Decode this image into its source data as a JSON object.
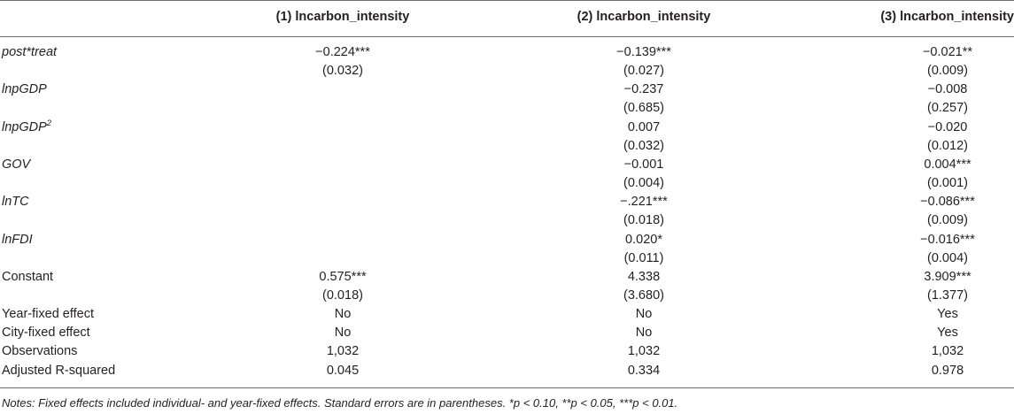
{
  "headers": [
    "",
    "(1) lncarbon_intensity",
    "(2) lncarbon_intensity",
    "(3) lncarbon_intensity"
  ],
  "rows": [
    {
      "label": "post*treat",
      "italic": true,
      "sup": "",
      "values": [
        "−0.224***",
        "−0.139***",
        "−0.021**"
      ]
    },
    {
      "label": "",
      "italic": false,
      "sup": "",
      "values": [
        "(0.032)",
        "(0.027)",
        "(0.009)"
      ]
    },
    {
      "label": "lnpGDP",
      "italic": true,
      "sup": "",
      "values": [
        "",
        "−0.237",
        "−0.008"
      ]
    },
    {
      "label": "",
      "italic": false,
      "sup": "",
      "values": [
        "",
        "(0.685)",
        "(0.257)"
      ]
    },
    {
      "label": "lnpGDP",
      "italic": true,
      "sup": "2",
      "values": [
        "",
        "0.007",
        "−0.020"
      ]
    },
    {
      "label": "",
      "italic": false,
      "sup": "",
      "values": [
        "",
        "(0.032)",
        "(0.012)"
      ]
    },
    {
      "label": "GOV",
      "italic": true,
      "sup": "",
      "values": [
        "",
        "−0.001",
        "0.004***"
      ]
    },
    {
      "label": "",
      "italic": false,
      "sup": "",
      "values": [
        "",
        "(0.004)",
        "(0.001)"
      ]
    },
    {
      "label": "lnTC",
      "italic": true,
      "sup": "",
      "values": [
        "",
        "−.221***",
        "−0.086***"
      ]
    },
    {
      "label": "",
      "italic": false,
      "sup": "",
      "values": [
        "",
        "(0.018)",
        "(0.009)"
      ]
    },
    {
      "label": "lnFDI",
      "italic": true,
      "sup": "",
      "values": [
        "",
        "0.020*",
        "−0.016***"
      ]
    },
    {
      "label": "",
      "italic": false,
      "sup": "",
      "values": [
        "",
        "(0.011)",
        "(0.004)"
      ]
    },
    {
      "label": "Constant",
      "italic": false,
      "sup": "",
      "values": [
        "0.575***",
        "4.338",
        "3.909***"
      ]
    },
    {
      "label": "",
      "italic": false,
      "sup": "",
      "values": [
        "(0.018)",
        "(3.680)",
        "(1.377)"
      ]
    },
    {
      "label": "Year-fixed effect",
      "italic": false,
      "sup": "",
      "values": [
        "No",
        "No",
        "Yes"
      ]
    },
    {
      "label": "City-fixed effect",
      "italic": false,
      "sup": "",
      "values": [
        "No",
        "No",
        "Yes"
      ]
    },
    {
      "label": "Observations",
      "italic": false,
      "sup": "",
      "values": [
        "1,032",
        "1,032",
        "1,032"
      ]
    },
    {
      "label": "Adjusted R-squared",
      "italic": false,
      "sup": "",
      "values": [
        "0.045",
        "0.334",
        "0.978"
      ]
    }
  ],
  "notes": "Notes: Fixed effects included individual- and year-fixed effects. Standard errors are in parentheses. *p < 0.10, **p < 0.05, ***p < 0.01."
}
